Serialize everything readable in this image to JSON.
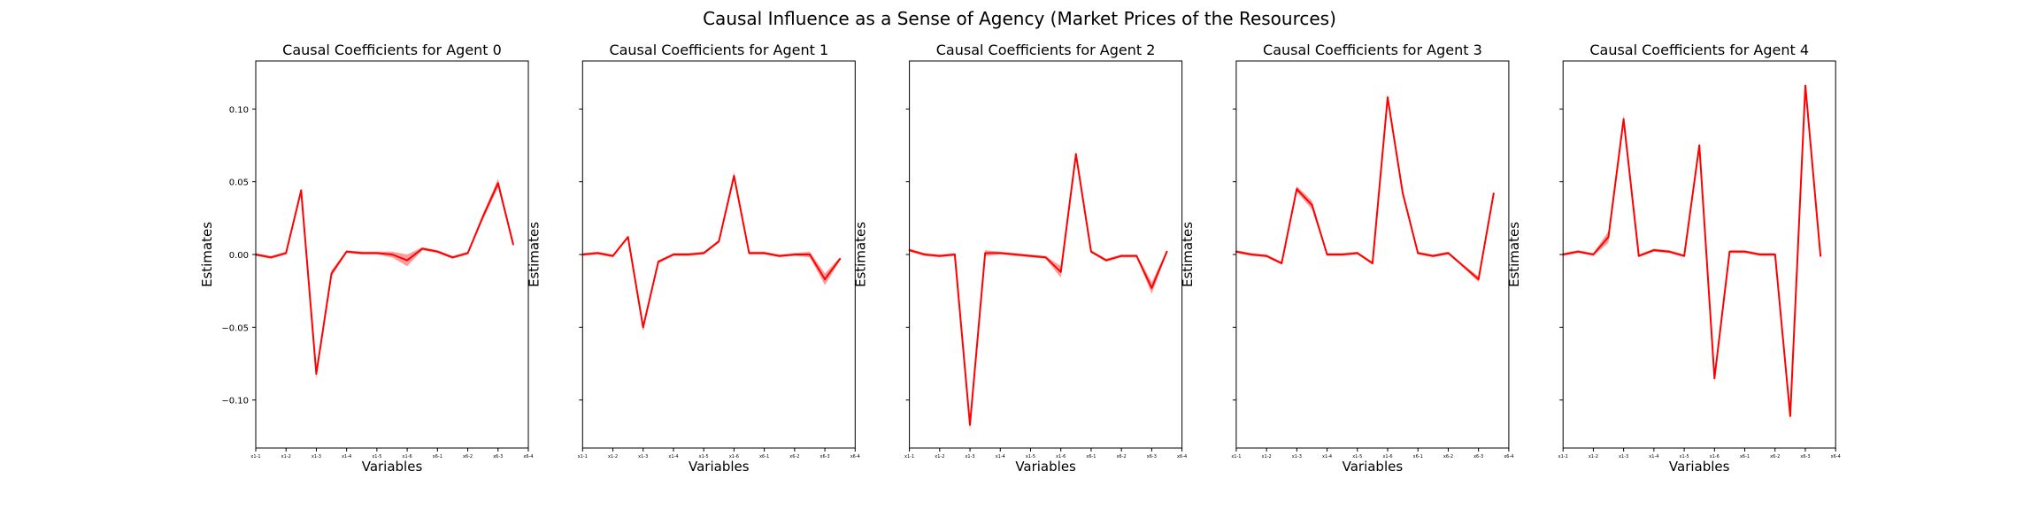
{
  "figure": {
    "title": "Causal Influence as a Sense of Agency (Market Prices of the Resources)"
  },
  "colors": {
    "line": "#ff0000",
    "band": "#ff4d4d",
    "axis": "#000000"
  },
  "chart_data": [
    {
      "type": "line",
      "title": "Causal Coefficients for Agent 0",
      "xlabel": "Variables",
      "ylabel": "Estimates",
      "ylim": [
        -0.133,
        0.133
      ],
      "yticks": [
        -0.1,
        -0.05,
        0.0,
        0.05,
        0.1
      ],
      "ytick_labels": [
        "−0.10",
        "−0.05",
        "0.00",
        "0.05",
        "0.10"
      ],
      "xlim": [
        0,
        18
      ],
      "xticks": [
        0,
        2,
        4,
        6,
        8,
        10,
        12,
        14,
        16,
        18
      ],
      "xtick_labels": [
        "x1-1",
        "x1-2",
        "x1-3",
        "x1-4",
        "x1-5",
        "x1-6",
        "x6-1",
        "x6-2",
        "x6-3",
        "x6-4"
      ],
      "legend": "none",
      "grid": false,
      "x": [
        0,
        1,
        2,
        3,
        4,
        5,
        6,
        7,
        8,
        9,
        10,
        11,
        12,
        13,
        14,
        15,
        16,
        17
      ],
      "values": [
        0.0,
        -0.002,
        0.001,
        0.044,
        -0.082,
        -0.013,
        0.002,
        0.001,
        0.001,
        0.0,
        -0.004,
        0.004,
        0.002,
        -0.002,
        0.001,
        0.026,
        0.049,
        0.007
      ],
      "band": [
        0.001,
        0.001,
        0.001,
        0.002,
        0.003,
        0.002,
        0.001,
        0.001,
        0.001,
        0.002,
        0.004,
        0.001,
        0.001,
        0.001,
        0.001,
        0.002,
        0.003,
        0.001
      ]
    },
    {
      "type": "line",
      "title": "Causal Coefficients for Agent 1",
      "xlabel": "Variables",
      "ylabel": "Estimates",
      "ylim": [
        -0.133,
        0.133
      ],
      "xlim": [
        0,
        18
      ],
      "xticks": [
        0,
        2,
        4,
        6,
        8,
        10,
        12,
        14,
        16,
        18
      ],
      "xtick_labels": [
        "x1-1",
        "x1-2",
        "x1-3",
        "x1-4",
        "x1-5",
        "x1-6",
        "x6-1",
        "x6-2",
        "x6-3",
        "x6-4"
      ],
      "legend": "none",
      "grid": false,
      "x": [
        0,
        1,
        2,
        3,
        4,
        5,
        6,
        7,
        8,
        9,
        10,
        11,
        12,
        13,
        14,
        15,
        16,
        17
      ],
      "values": [
        0.0,
        0.001,
        -0.001,
        0.012,
        -0.05,
        -0.005,
        0.0,
        0.0,
        0.001,
        0.009,
        0.054,
        0.001,
        0.001,
        -0.001,
        0.0,
        0.0,
        -0.017,
        -0.003
      ],
      "band": [
        0.001,
        0.001,
        0.001,
        0.001,
        0.003,
        0.001,
        0.001,
        0.001,
        0.001,
        0.001,
        0.003,
        0.001,
        0.001,
        0.001,
        0.001,
        0.002,
        0.004,
        0.001
      ]
    },
    {
      "type": "line",
      "title": "Causal Coefficients for Agent 2",
      "xlabel": "Variables",
      "ylabel": "Estimates",
      "ylim": [
        -0.133,
        0.133
      ],
      "xlim": [
        0,
        18
      ],
      "xticks": [
        0,
        2,
        4,
        6,
        8,
        10,
        12,
        14,
        16,
        18
      ],
      "xtick_labels": [
        "x1-1",
        "x1-2",
        "x1-3",
        "x1-4",
        "x1-5",
        "x1-6",
        "x6-1",
        "x6-2",
        "x6-3",
        "x6-4"
      ],
      "legend": "none",
      "grid": false,
      "x": [
        0,
        1,
        2,
        3,
        4,
        5,
        6,
        7,
        8,
        9,
        10,
        11,
        12,
        13,
        14,
        15,
        16,
        17
      ],
      "values": [
        0.003,
        0.0,
        -0.001,
        0.0,
        -0.117,
        0.001,
        0.001,
        0.0,
        -0.001,
        -0.002,
        -0.012,
        0.069,
        0.002,
        -0.004,
        -0.001,
        -0.001,
        -0.023,
        0.002
      ],
      "band": [
        0.001,
        0.001,
        0.001,
        0.001,
        0.004,
        0.002,
        0.001,
        0.001,
        0.001,
        0.001,
        0.004,
        0.002,
        0.001,
        0.001,
        0.001,
        0.001,
        0.004,
        0.001
      ]
    },
    {
      "type": "line",
      "title": "Causal Coefficients for Agent 3",
      "xlabel": "Variables",
      "ylabel": "Estimates",
      "ylim": [
        -0.133,
        0.133
      ],
      "xlim": [
        0,
        18
      ],
      "xticks": [
        0,
        2,
        4,
        6,
        8,
        10,
        12,
        14,
        16,
        18
      ],
      "xtick_labels": [
        "x1-1",
        "x1-2",
        "x1-3",
        "x1-4",
        "x1-5",
        "x1-6",
        "x6-1",
        "x6-2",
        "x6-3",
        "x6-4"
      ],
      "legend": "none",
      "grid": false,
      "x": [
        0,
        1,
        2,
        3,
        4,
        5,
        6,
        7,
        8,
        9,
        10,
        11,
        12,
        13,
        14,
        15,
        16,
        17
      ],
      "values": [
        0.002,
        0.0,
        -0.001,
        -0.006,
        0.045,
        0.034,
        0.0,
        0.0,
        0.001,
        -0.006,
        0.108,
        0.042,
        0.001,
        -0.001,
        0.001,
        -0.008,
        -0.017,
        0.042
      ],
      "band": [
        0.001,
        0.001,
        0.001,
        0.001,
        0.002,
        0.003,
        0.001,
        0.001,
        0.001,
        0.001,
        0.002,
        0.002,
        0.001,
        0.001,
        0.001,
        0.001,
        0.002,
        0.001
      ]
    },
    {
      "type": "line",
      "title": "Causal Coefficients for Agent 4",
      "xlabel": "Variables",
      "ylabel": "Estimates",
      "ylim": [
        -0.133,
        0.133
      ],
      "xlim": [
        0,
        18
      ],
      "xticks": [
        0,
        2,
        4,
        6,
        8,
        10,
        12,
        14,
        16,
        18
      ],
      "xtick_labels": [
        "x1-1",
        "x1-2",
        "x1-3",
        "x1-4",
        "x1-5",
        "x1-6",
        "x6-1",
        "x6-2",
        "x6-3",
        "x6-4"
      ],
      "legend": "none",
      "grid": false,
      "x": [
        0,
        1,
        2,
        3,
        4,
        5,
        6,
        7,
        8,
        9,
        10,
        11,
        12,
        13,
        14,
        15,
        16,
        17
      ],
      "values": [
        0.0,
        0.002,
        0.0,
        0.012,
        0.093,
        -0.001,
        0.003,
        0.002,
        -0.001,
        0.075,
        -0.085,
        0.002,
        0.002,
        0.0,
        0.0,
        -0.111,
        0.116,
        -0.001
      ],
      "band": [
        0.001,
        0.001,
        0.001,
        0.004,
        0.003,
        0.001,
        0.001,
        0.001,
        0.001,
        0.002,
        0.003,
        0.001,
        0.001,
        0.001,
        0.001,
        0.003,
        0.003,
        0.001
      ]
    }
  ]
}
